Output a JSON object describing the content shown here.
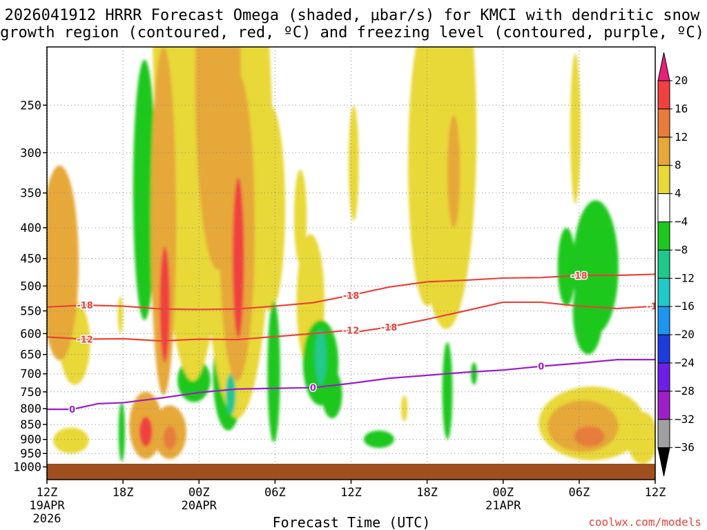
{
  "chart_data": {
    "type": "heatmap",
    "title_line1": "2026041912 HRRR Forecast Omega (shaded, μbar/s) for KMCI with dendritic snow",
    "title_line2": "growth region (contoured, red, ºC) and freezing level (contoured, purple, ºC)",
    "xlabel": "Forecast Time (UTC)",
    "credit": "coolwx.com/models",
    "x_range_hours": [
      0,
      48
    ],
    "y_range_mb": [
      200,
      1050
    ],
    "y_ticks": [
      250,
      300,
      350,
      400,
      450,
      500,
      550,
      600,
      650,
      700,
      750,
      800,
      850,
      900,
      950,
      1000
    ],
    "x_ticks": [
      {
        "hour": 0,
        "label": "12Z",
        "date": "19APR",
        "year": "2026"
      },
      {
        "hour": 6,
        "label": "18Z"
      },
      {
        "hour": 12,
        "label": "00Z",
        "date": "20APR"
      },
      {
        "hour": 18,
        "label": "06Z"
      },
      {
        "hour": 24,
        "label": "12Z"
      },
      {
        "hour": 30,
        "label": "18Z"
      },
      {
        "hour": 36,
        "label": "00Z",
        "date": "21APR"
      },
      {
        "hour": 42,
        "label": "06Z"
      },
      {
        "hour": 48,
        "label": "12Z"
      }
    ],
    "colorbar": {
      "levels": [
        "20",
        "16",
        "12",
        "8",
        "4",
        "−4",
        "−8",
        "−12",
        "−16",
        "−20",
        "−24",
        "−28",
        "−32",
        "−36"
      ],
      "bands": [
        {
          "range": [
            16,
            20
          ],
          "color": "#f04040"
        },
        {
          "range": [
            12,
            16
          ],
          "color": "#e87c3a"
        },
        {
          "range": [
            8,
            12
          ],
          "color": "#e6a838"
        },
        {
          "range": [
            4,
            8
          ],
          "color": "#e8d838"
        },
        {
          "range": [
            -4,
            4
          ],
          "color": "#ffffff"
        },
        {
          "range": [
            -8,
            -4
          ],
          "color": "#1ec81e"
        },
        {
          "range": [
            -12,
            -8
          ],
          "color": "#20c88c"
        },
        {
          "range": [
            -16,
            -12
          ],
          "color": "#20c8c8"
        },
        {
          "range": [
            -20,
            -16
          ],
          "color": "#1e96f0"
        },
        {
          "range": [
            -24,
            -20
          ],
          "color": "#1e3cdc"
        },
        {
          "range": [
            -28,
            -24
          ],
          "color": "#6e1ee6"
        },
        {
          "range": [
            -32,
            -28
          ],
          "color": "#a01ec8"
        },
        {
          "range": [
            -36,
            -32
          ],
          "color": "#a0a0a0"
        }
      ],
      "top_arrow_color": "#e8207a",
      "bottom_arrow_color": "#000000"
    },
    "contours": [
      {
        "label": "-18",
        "color": "#e8423a",
        "points": [
          [
            0,
            542
          ],
          [
            3,
            538
          ],
          [
            6,
            540
          ],
          [
            9,
            546
          ],
          [
            12,
            547
          ],
          [
            15,
            546
          ],
          [
            18,
            540
          ],
          [
            21,
            533
          ],
          [
            24,
            518
          ],
          [
            27,
            502
          ],
          [
            30,
            492
          ],
          [
            33,
            489
          ],
          [
            36,
            485
          ],
          [
            39,
            484
          ],
          [
            42,
            480
          ],
          [
            45,
            480
          ],
          [
            48,
            478
          ]
        ]
      },
      {
        "label": "-18",
        "color": "#e8423a",
        "points": [
          [
            24,
            598
          ],
          [
            27,
            585
          ],
          [
            30,
            568
          ],
          [
            33,
            550
          ],
          [
            36,
            532
          ],
          [
            39,
            532
          ],
          [
            42,
            540
          ],
          [
            45,
            545
          ],
          [
            48,
            540
          ]
        ]
      },
      {
        "label": "-12",
        "color": "#e8423a",
        "points": [
          [
            0,
            608
          ],
          [
            3,
            613
          ],
          [
            6,
            612
          ],
          [
            9,
            617
          ],
          [
            12,
            613
          ],
          [
            15,
            614
          ],
          [
            18,
            607
          ],
          [
            21,
            600
          ],
          [
            24,
            592
          ]
        ]
      },
      {
        "label": "0",
        "color": "#9a1ec8",
        "points": [
          [
            0,
            802
          ],
          [
            2,
            802
          ],
          [
            4,
            785
          ],
          [
            6,
            782
          ],
          [
            9,
            768
          ],
          [
            12,
            752
          ],
          [
            15,
            742
          ],
          [
            18,
            740
          ],
          [
            21,
            738
          ],
          [
            24,
            726
          ],
          [
            27,
            712
          ],
          [
            30,
            704
          ],
          [
            33,
            696
          ],
          [
            36,
            690
          ],
          [
            39,
            680
          ],
          [
            42,
            672
          ],
          [
            45,
            663
          ],
          [
            48,
            663
          ]
        ]
      }
    ],
    "omega_blobs": [
      {
        "t": 1.0,
        "p": 490,
        "dt": 1.5,
        "dp": 175,
        "v": 9
      },
      {
        "t": 1.0,
        "p": 520,
        "dt": 0.5,
        "dp": 120,
        "v": 11
      },
      {
        "t": 2.2,
        "p": 630,
        "dt": 1.2,
        "dp": 100,
        "v": 5
      },
      {
        "t": 1.9,
        "p": 905,
        "dt": 1.4,
        "dp": 45,
        "v": 6
      },
      {
        "t": 5.8,
        "p": 560,
        "dt": 0.2,
        "dp": 40,
        "v": 5
      },
      {
        "t": 7.8,
        "p": 860,
        "dt": 1.3,
        "dp": 110,
        "v": 9
      },
      {
        "t": 7.8,
        "p": 875,
        "dt": 0.5,
        "dp": 50,
        "v": 17
      },
      {
        "t": 9.7,
        "p": 880,
        "dt": 1.3,
        "dp": 90,
        "v": 9
      },
      {
        "t": 9.7,
        "p": 895,
        "dt": 0.5,
        "dp": 40,
        "v": 15
      },
      {
        "t": 9.2,
        "p": 480,
        "dt": 1.0,
        "dp": 280,
        "v": 10
      },
      {
        "t": 9.3,
        "p": 550,
        "dt": 0.4,
        "dp": 120,
        "v": 16
      },
      {
        "t": 11.5,
        "p": 370,
        "dt": 3.3,
        "dp": 350,
        "v": 6
      },
      {
        "t": 13.5,
        "p": 290,
        "dt": 1.8,
        "dp": 180,
        "v": 9
      },
      {
        "t": 15.0,
        "p": 470,
        "dt": 2.8,
        "dp": 360,
        "v": 7
      },
      {
        "t": 15.0,
        "p": 470,
        "dt": 1.4,
        "dp": 250,
        "v": 11
      },
      {
        "t": 15.1,
        "p": 470,
        "dt": 0.45,
        "dp": 140,
        "v": 17
      },
      {
        "t": 17.6,
        "p": 400,
        "dt": 1.2,
        "dp": 150,
        "v": 5
      },
      {
        "t": 20.0,
        "p": 390,
        "dt": 0.5,
        "dp": 70,
        "v": 5
      },
      {
        "t": 20.8,
        "p": 550,
        "dt": 1.1,
        "dp": 140,
        "v": 5
      },
      {
        "t": 24.2,
        "p": 320,
        "dt": 0.4,
        "dp": 70,
        "v": 5
      },
      {
        "t": 30.0,
        "p": 360,
        "dt": 1.5,
        "dp": 180,
        "v": 5
      },
      {
        "t": 31.5,
        "p": 360,
        "dt": 2.4,
        "dp": 230,
        "v": 6
      },
      {
        "t": 32.1,
        "p": 330,
        "dt": 0.5,
        "dp": 70,
        "v": 9
      },
      {
        "t": 28.2,
        "p": 800,
        "dt": 0.25,
        "dp": 40,
        "v": 5
      },
      {
        "t": 41.7,
        "p": 285,
        "dt": 0.4,
        "dp": 80,
        "v": 5
      },
      {
        "t": 43.0,
        "p": 855,
        "dt": 4.2,
        "dp": 120,
        "v": 5
      },
      {
        "t": 42.3,
        "p": 860,
        "dt": 2.8,
        "dp": 85,
        "v": 9
      },
      {
        "t": 42.8,
        "p": 890,
        "dt": 1.2,
        "dp": 35,
        "v": 13
      },
      {
        "t": 47.0,
        "p": 900,
        "dt": 1.2,
        "dp": 90,
        "v": 5
      },
      {
        "t": 7.7,
        "p": 390,
        "dt": 0.9,
        "dp": 180,
        "v": -5
      },
      {
        "t": 7.5,
        "p": 410,
        "dt": 0.45,
        "dp": 120,
        "v": -7
      },
      {
        "t": 5.9,
        "p": 880,
        "dt": 0.25,
        "dp": 100,
        "v": -5
      },
      {
        "t": 11.6,
        "p": 720,
        "dt": 1.3,
        "dp": 60,
        "v": -5
      },
      {
        "t": 14.3,
        "p": 720,
        "dt": 1.2,
        "dp": 150,
        "v": -5
      },
      {
        "t": 14.5,
        "p": 760,
        "dt": 0.4,
        "dp": 60,
        "v": -9
      },
      {
        "t": 17.9,
        "p": 720,
        "dt": 0.5,
        "dp": 190,
        "v": -5
      },
      {
        "t": 21.6,
        "p": 680,
        "dt": 1.4,
        "dp": 110,
        "v": -5
      },
      {
        "t": 21.6,
        "p": 660,
        "dt": 0.45,
        "dp": 70,
        "v": -9
      },
      {
        "t": 22.5,
        "p": 760,
        "dt": 0.8,
        "dp": 70,
        "v": -5
      },
      {
        "t": 26.2,
        "p": 900,
        "dt": 1.2,
        "dp": 30,
        "v": -5
      },
      {
        "t": 31.6,
        "p": 760,
        "dt": 0.4,
        "dp": 140,
        "v": -5
      },
      {
        "t": 33.7,
        "p": 700,
        "dt": 0.25,
        "dp": 30,
        "v": -5
      },
      {
        "t": 41.0,
        "p": 470,
        "dt": 0.7,
        "dp": 70,
        "v": -5
      },
      {
        "t": 43.3,
        "p": 480,
        "dt": 1.8,
        "dp": 120,
        "v": -5
      },
      {
        "t": 42.7,
        "p": 560,
        "dt": 1.2,
        "dp": 90,
        "v": -5
      }
    ]
  }
}
